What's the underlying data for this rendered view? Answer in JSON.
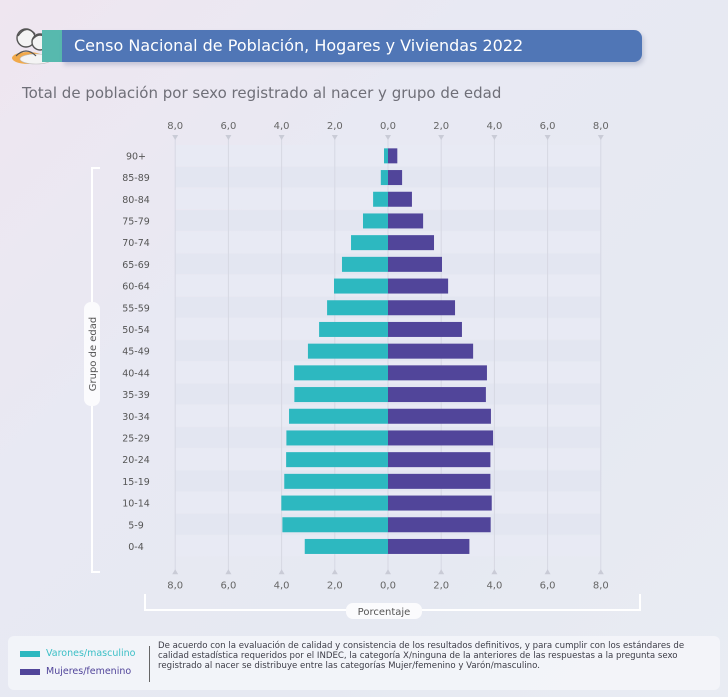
{
  "header": {
    "title": "Censo Nacional de Población, Hogares y Viviendas 2022",
    "logo_icon": "census-people-icon"
  },
  "colors": {
    "header_bg": "#5076b6",
    "male": "#2db8c0",
    "female": "#51459a"
  },
  "legend": {
    "male_label": "Varones/masculino",
    "female_label": "Mujeres/femenino",
    "note": "De acuerdo con la evaluación de calidad y consistencia de los resultados definitivos, y para cumplir con los estándares de calidad estadística requeridos por el INDEC, la categoría X/ninguna de la anteriores de las respuestas a la pregunta sexo registrado al nacer se distribuye entre las categorías Mujer/femenino y Varón/masculino."
  },
  "chart_data": {
    "type": "bar",
    "orientation": "horizontal-population-pyramid",
    "title": "Total de población por sexo registrado al nacer y grupo de edad",
    "xlabel": "Porcentaje",
    "ylabel": "Grupo de edad",
    "xlim": [
      -8,
      8
    ],
    "x_ticks": [
      "8,0",
      "6,0",
      "4,0",
      "2,0",
      "0,0",
      "2,0",
      "4,0",
      "6,0",
      "8,0"
    ],
    "grid": true,
    "categories": [
      "90+",
      "85-89",
      "80-84",
      "75-79",
      "70-74",
      "65-69",
      "60-64",
      "55-59",
      "50-54",
      "45-49",
      "40-44",
      "35-39",
      "30-34",
      "25-29",
      "20-24",
      "15-19",
      "10-14",
      "5-9",
      "0-4"
    ],
    "series": [
      {
        "name": "Varones/masculino",
        "side": "left",
        "values": [
          0.15,
          0.27,
          0.56,
          0.94,
          1.39,
          1.73,
          2.03,
          2.29,
          2.59,
          3.01,
          3.53,
          3.52,
          3.72,
          3.82,
          3.83,
          3.9,
          4.01,
          3.97,
          3.13
        ]
      },
      {
        "name": "Mujeres/femenino",
        "side": "right",
        "values": [
          0.35,
          0.53,
          0.9,
          1.32,
          1.73,
          2.03,
          2.26,
          2.52,
          2.78,
          3.2,
          3.72,
          3.68,
          3.87,
          3.95,
          3.85,
          3.85,
          3.9,
          3.86,
          3.06
        ]
      }
    ]
  }
}
